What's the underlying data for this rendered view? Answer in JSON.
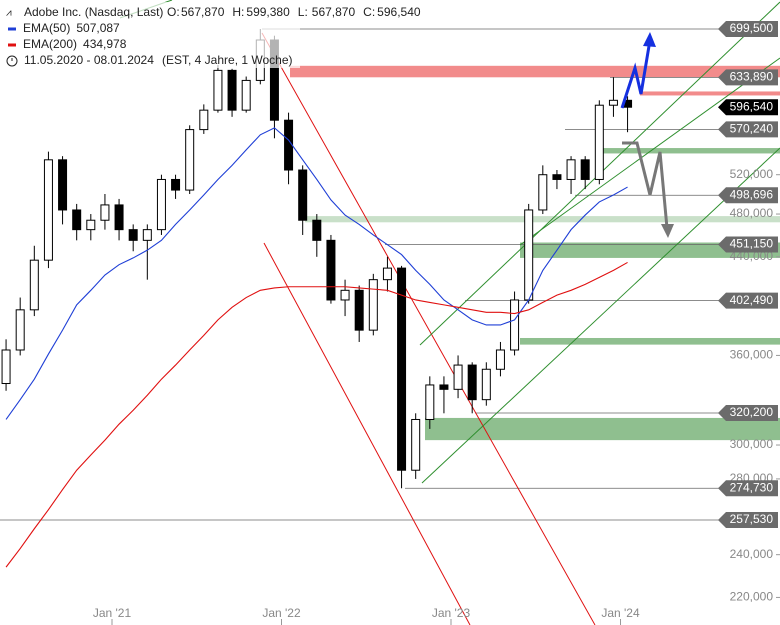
{
  "chart_data": {
    "type": "candlestick",
    "title": "Adobe Inc. (Nasdaq, Last)",
    "quote": [
      {
        "name": "O:",
        "label": "567,870"
      },
      {
        "name": "H:",
        "label": "599,380"
      },
      {
        "name": "L:",
        "label": "567,870"
      },
      {
        "name": "C:",
        "label": "596,540"
      }
    ],
    "period": "11.05.2020 - 08.01.2024",
    "period_note": "(EST, 4 Jahre, 1 Woche)",
    "categories": [
      null,
      null,
      null,
      null,
      null,
      null,
      null,
      null,
      "Jan '21",
      null,
      null,
      null,
      null,
      null,
      null,
      null,
      null,
      null,
      null,
      null,
      "Jan '22",
      null,
      null,
      null,
      null,
      null,
      null,
      null,
      null,
      null,
      null,
      null,
      "Jan '23",
      null,
      null,
      null,
      null,
      null,
      null,
      null,
      null,
      null,
      null,
      null,
      "Jan '24"
    ],
    "open": [
      340,
      364,
      395,
      437,
      536,
      484,
      465,
      474,
      489,
      465,
      455,
      465,
      515,
      504,
      570,
      593,
      643,
      593,
      630,
      684,
      581,
      525,
      474,
      455,
      403,
      411,
      379,
      420,
      430,
      285,
      316,
      339,
      336,
      353,
      329,
      350,
      364,
      403,
      484,
      520,
      515,
      536,
      515,
      599,
      605
    ],
    "high": [
      372,
      405,
      450,
      545,
      540,
      490,
      480,
      500,
      495,
      470,
      470,
      520,
      520,
      575,
      600,
      650,
      645,
      635,
      699.5,
      690,
      590,
      530,
      480,
      460,
      420,
      415,
      425,
      440,
      432,
      320,
      345,
      345,
      360,
      355,
      355,
      370,
      410,
      490,
      530,
      525,
      540,
      540,
      605,
      634,
      610
    ],
    "low": [
      335,
      360,
      390,
      430,
      470,
      455,
      455,
      465,
      455,
      445,
      420,
      460,
      495,
      500,
      565,
      590,
      585,
      590,
      625,
      560,
      510,
      460,
      440,
      400,
      390,
      370,
      375,
      410,
      274.73,
      280,
      310,
      320,
      330,
      320,
      325,
      345,
      360,
      400,
      480,
      505,
      500,
      505,
      510,
      585,
      567
    ],
    "close": [
      364,
      395,
      437,
      536,
      484,
      465,
      474,
      489,
      465,
      455,
      465,
      515,
      504,
      570,
      593,
      643,
      593,
      630,
      684,
      581,
      525,
      474,
      455,
      403,
      411,
      379,
      420,
      430,
      285,
      316,
      339,
      336,
      353,
      329,
      350,
      364,
      403,
      484,
      520,
      515,
      536,
      515,
      599,
      605,
      596.54
    ],
    "series": [
      {
        "name": "EMA(50)",
        "last_label": "507,087",
        "color": "#1f3fd6",
        "values": [
          316,
          329,
          343,
          361,
          379,
          399,
          411,
          424,
          433,
          439,
          446,
          455,
          470,
          484,
          499,
          515,
          530,
          547,
          564,
          572,
          558,
          536,
          515,
          494,
          479,
          470,
          460,
          451,
          442,
          428,
          416,
          403,
          395,
          387,
          383,
          383,
          387,
          403,
          428,
          446,
          465,
          479,
          492,
          499,
          507.087
        ]
      },
      {
        "name": "EMA(200)",
        "last_label": "434,978",
        "color": "#e01010",
        "values": [
          234,
          243,
          253,
          263,
          274,
          285,
          294,
          303,
          313,
          322,
          332,
          343,
          353,
          364,
          375,
          387,
          397,
          405,
          411,
          413,
          414,
          414,
          414,
          414,
          414,
          413,
          412,
          411,
          407,
          403,
          401,
          399,
          397,
          395,
          393,
          393,
          392,
          395,
          401,
          407,
          411,
          416,
          422,
          428,
          434.978
        ]
      }
    ],
    "levels": [
      {
        "value": 699.5,
        "label": "699,500"
      },
      {
        "value": 633.89,
        "label": "633,890"
      },
      {
        "value": 596.54,
        "label": "596,540",
        "highlight": true
      },
      {
        "value": 570.24,
        "label": "570,240"
      },
      {
        "value": 498.696,
        "label": "498,696"
      },
      {
        "value": 451.15,
        "label": "451,150"
      },
      {
        "value": 402.49,
        "label": "402,490"
      },
      {
        "value": 320.2,
        "label": "320,200"
      },
      {
        "value": 274.73,
        "label": "274,730"
      },
      {
        "value": 257.53,
        "label": "257,530"
      }
    ],
    "zones": [
      {
        "low": 634,
        "high": 649,
        "color": "#f28b8b"
      },
      {
        "low": 611,
        "high": 616,
        "color": "#f28b8b"
      },
      {
        "low": 543,
        "high": 549,
        "color": "#8fbf8f"
      },
      {
        "low": 472,
        "high": 478,
        "color": "#c9e0c9"
      },
      {
        "low": 439,
        "high": 453,
        "color": "#8fbf8f"
      },
      {
        "low": 368,
        "high": 373,
        "color": "#8fbf8f"
      },
      {
        "low": 303,
        "high": 317,
        "color": "#8fbf8f"
      }
    ],
    "ylim": [
      208,
      742
    ],
    "log_scale": true,
    "yticks": [
      {
        "value": 220,
        "label": "220,000"
      },
      {
        "value": 240,
        "label": "240,000"
      },
      {
        "value": 280,
        "label": "280,000"
      },
      {
        "value": 300,
        "label": "300,000"
      },
      {
        "value": 360,
        "label": "360,000"
      },
      {
        "value": 440,
        "label": "440,000"
      },
      {
        "value": 480,
        "label": "480,000"
      },
      {
        "value": 520,
        "label": "520,000"
      }
    ]
  }
}
